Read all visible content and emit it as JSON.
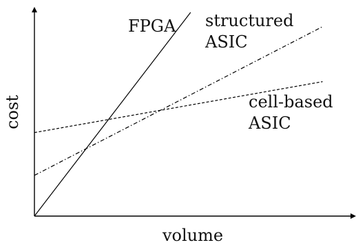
{
  "chart_data": {
    "type": "line",
    "title": "",
    "xlabel": "volume",
    "ylabel": "cost",
    "xlim": [
      0,
      100
    ],
    "ylim": [
      0,
      100
    ],
    "grid": false,
    "legend": "none",
    "series": [
      {
        "name": "FPGA",
        "style": "solid",
        "points": [
          [
            0,
            0
          ],
          [
            50.4,
            100
          ]
        ],
        "label_lines": [
          "FPGA"
        ]
      },
      {
        "name": "structured ASIC",
        "style": "dashdot",
        "points": [
          [
            0,
            20
          ],
          [
            93,
            93
          ]
        ],
        "label_lines": [
          "structured",
          "ASIC"
        ]
      },
      {
        "name": "cell-based ASIC",
        "style": "dotted",
        "points": [
          [
            0,
            41
          ],
          [
            93,
            66
          ]
        ],
        "label_lines": [
          "cell-based",
          "ASIC"
        ]
      }
    ]
  }
}
